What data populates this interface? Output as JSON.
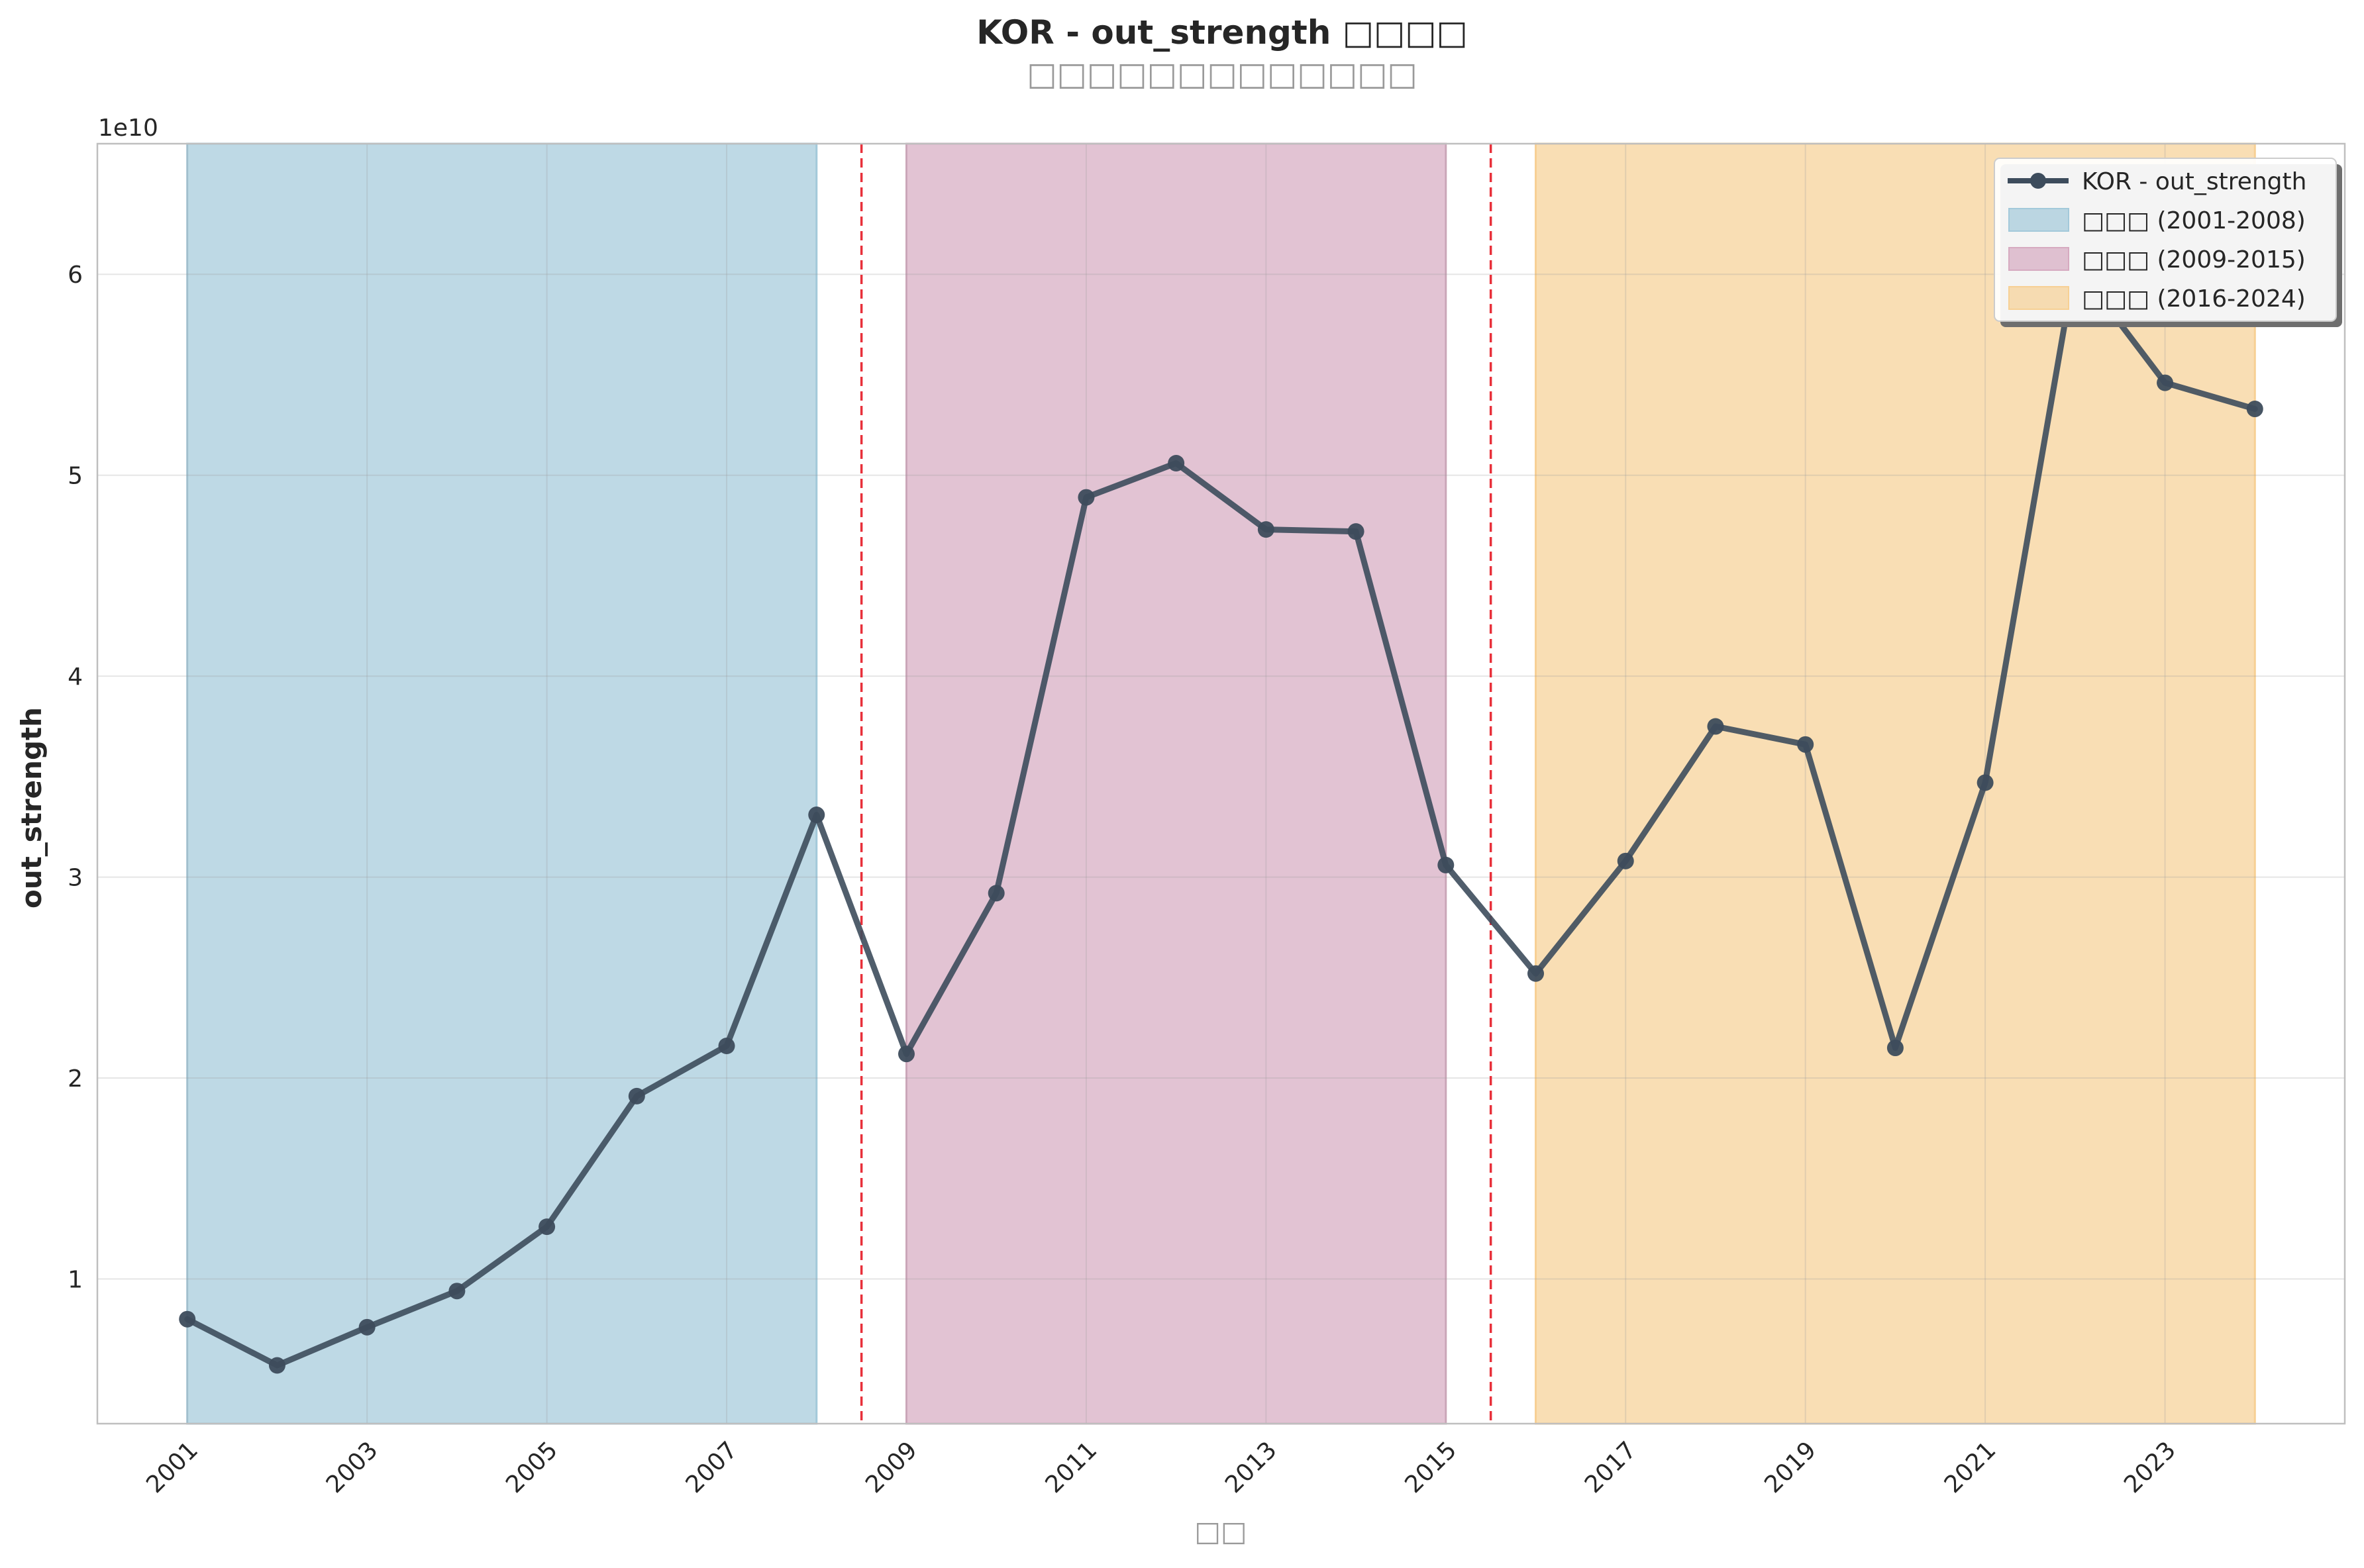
{
  "chart_data": {
    "type": "line",
    "title": "KOR - out_strength □□□□",
    "subtitle": "□□□□□□□□□□□□□",
    "xlabel": "□□",
    "ylabel": "out_strength",
    "y_multiplier_label": "1e10",
    "x_tick_labels": [
      "2001",
      "2003",
      "2005",
      "2007",
      "2009",
      "2011",
      "2013",
      "2015",
      "2017",
      "2019",
      "2021",
      "2023"
    ],
    "y_tick_labels": [
      "1",
      "2",
      "3",
      "4",
      "5",
      "6"
    ],
    "xlim": [
      2000,
      2025
    ],
    "ylim": [
      0.28,
      6.65
    ],
    "grid": true,
    "legend_position": "top-right",
    "series": [
      {
        "name": "KOR - out_strength",
        "color": "#3d4c5c",
        "x": [
          2001,
          2002,
          2003,
          2004,
          2005,
          2006,
          2007,
          2008,
          2009,
          2010,
          2011,
          2012,
          2013,
          2014,
          2015,
          2016,
          2017,
          2018,
          2019,
          2020,
          2021,
          2022,
          2023,
          2024
        ],
        "values": [
          0.8,
          0.57,
          0.76,
          0.94,
          1.26,
          1.91,
          2.16,
          3.31,
          2.12,
          2.92,
          4.89,
          5.06,
          4.73,
          4.72,
          3.06,
          2.52,
          3.08,
          3.75,
          3.66,
          2.15,
          3.47,
          6.05,
          5.46,
          5.33
        ]
      }
    ],
    "periods": [
      {
        "label": "□□□ (2001-2008)",
        "start": 2001,
        "end": 2008,
        "color": "#a3c9da"
      },
      {
        "label": "□□□ (2009-2015)",
        "start": 2009,
        "end": 2015,
        "color": "#d6aac0"
      },
      {
        "label": "□□□ (2016-2024)",
        "start": 2016,
        "end": 2024,
        "color": "#f7d094"
      }
    ],
    "breakpoints": [
      2008.5,
      2015.5
    ],
    "breakpoint_color": "#e8303a"
  }
}
